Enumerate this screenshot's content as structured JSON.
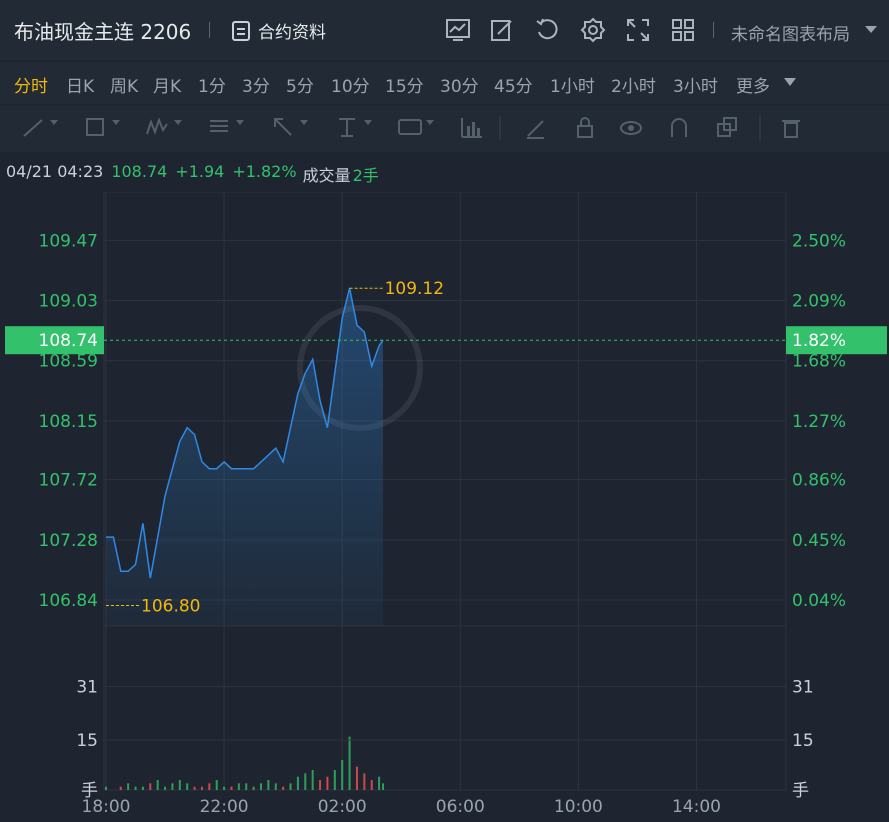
{
  "header": {
    "title": "布油现金主连 2206",
    "contract_info_label": "合约资料",
    "layout_name": "未命名图表布局",
    "icons": [
      "indicator-icon",
      "edit-icon",
      "undo-icon",
      "settings-icon",
      "fullscreen-icon",
      "grid-layout-icon"
    ]
  },
  "periods": [
    {
      "label": "分时",
      "active": true
    },
    {
      "label": "日K"
    },
    {
      "label": "周K"
    },
    {
      "label": "月K"
    },
    {
      "label": "1分"
    },
    {
      "label": "3分"
    },
    {
      "label": "5分"
    },
    {
      "label": "10分"
    },
    {
      "label": "15分"
    },
    {
      "label": "30分"
    },
    {
      "label": "45分"
    },
    {
      "label": "1小时"
    },
    {
      "label": "2小时"
    },
    {
      "label": "3小时"
    },
    {
      "label": "更多"
    }
  ],
  "toolbar_icons": [
    "line-tool-icon",
    "rectangle-tool-icon",
    "wave-tool-icon",
    "fib-tool-icon",
    "arrow-tool-icon",
    "price-range-tool-icon",
    "label-tool-icon",
    "volume-profile-icon",
    "pencil-icon",
    "lock-icon",
    "eye-icon",
    "magnet-icon",
    "copy-icon",
    "trash-icon"
  ],
  "quote": {
    "datetime": "04/21 04:23",
    "price": "108.74",
    "change": "+1.94",
    "change_pct": "+1.82%",
    "volume_label": "成交量",
    "volume": "2手"
  },
  "colors": {
    "up": "#33c16c",
    "line": "#2f8ae5",
    "accent": "#f0b90b",
    "current": "#33c16c"
  },
  "chart_data": {
    "type": "line",
    "price_ticks": [
      "109.47",
      "109.03",
      "108.59",
      "108.15",
      "107.72",
      "107.28",
      "106.84"
    ],
    "pct_ticks": [
      "2.50%",
      "2.09%",
      "1.68%",
      "1.27%",
      "0.86%",
      "0.45%",
      "0.04%"
    ],
    "current_price_tag": "108.74",
    "current_pct_tag": "1.82%",
    "high_label": "109.12",
    "low_label": "106.80",
    "volume_ticks": [
      "31",
      "15"
    ],
    "volume_unit": "手",
    "x_ticks": [
      "18:00",
      "22:00",
      "02:00",
      "06:00",
      "10:00",
      "14:00"
    ],
    "x_minutes": [
      0,
      15,
      30,
      45,
      60,
      75,
      90,
      105,
      120,
      135,
      150,
      165,
      180,
      195,
      210,
      225,
      240,
      255,
      270,
      285,
      300,
      315,
      330,
      345,
      360,
      375,
      390,
      405,
      420,
      435,
      450,
      465,
      480,
      495,
      510,
      525,
      540,
      555,
      563
    ],
    "prices": [
      107.3,
      107.3,
      107.05,
      107.05,
      107.1,
      107.4,
      107.0,
      107.3,
      107.6,
      107.8,
      108.0,
      108.1,
      108.05,
      107.85,
      107.8,
      107.8,
      107.85,
      107.8,
      107.8,
      107.8,
      107.8,
      107.85,
      107.9,
      107.95,
      107.85,
      108.1,
      108.35,
      108.5,
      108.6,
      108.3,
      108.1,
      108.5,
      108.9,
      109.12,
      108.85,
      108.8,
      108.55,
      108.7,
      108.74
    ],
    "volumes": [
      1,
      0,
      1,
      2,
      1,
      1,
      2,
      3,
      1,
      2,
      3,
      2,
      1,
      1,
      2,
      3,
      1,
      1,
      2,
      2,
      1,
      2,
      3,
      2,
      1,
      2,
      4,
      5,
      6,
      3,
      4,
      6,
      9,
      16,
      7,
      5,
      3,
      4,
      2
    ],
    "xlim_minutes": [
      0,
      1260
    ],
    "ylim": [
      106.65,
      109.78
    ]
  }
}
